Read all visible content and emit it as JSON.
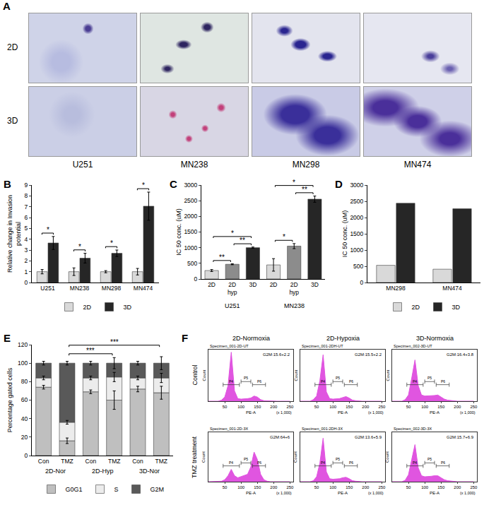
{
  "image_panel": {
    "label": "A",
    "rows": [
      "2D",
      "3D"
    ],
    "columns": [
      "U251",
      "MN238",
      "MN298",
      "MN474"
    ]
  },
  "chart_data": [
    {
      "panel": "B",
      "type": "bar",
      "categories": [
        "U251",
        "MN238",
        "MN298",
        "MN474"
      ],
      "series": [
        {
          "name": "2D",
          "color": "#d9d9d9",
          "values": [
            1,
            1,
            1,
            1
          ],
          "errors": [
            0.2,
            0.35,
            0.1,
            0.3
          ]
        },
        {
          "name": "3D",
          "color": "#262626",
          "values": [
            3.65,
            2.25,
            2.7,
            7.05
          ],
          "errors": [
            0.6,
            0.45,
            0.3,
            1.3
          ]
        }
      ],
      "y_label": "Relative change in Invasion\npotential",
      "ylim": [
        0,
        9
      ],
      "yticks": [
        0,
        1,
        2,
        3,
        4,
        5,
        6,
        7,
        8,
        9
      ],
      "legend": "bottom",
      "significance": [
        {
          "category": "U251",
          "text": "*"
        },
        {
          "category": "MN238",
          "text": "*"
        },
        {
          "category": "MN298",
          "text": "*"
        },
        {
          "category": "MN474",
          "text": "*"
        }
      ]
    },
    {
      "panel": "C",
      "type": "bar",
      "categories": [
        "2D",
        "2D\nhyp",
        "3D",
        "2D",
        "2D\nhyp",
        "3D"
      ],
      "groups": [
        {
          "label": "U251",
          "from": 0,
          "to": 2
        },
        {
          "label": "MN238",
          "from": 3,
          "to": 5
        }
      ],
      "values": [
        270,
        470,
        1000,
        450,
        1050,
        2550
      ],
      "errors": [
        30,
        15,
        20,
        200,
        80,
        100
      ],
      "colors": [
        "#d9d9d9",
        "#8c8c8c",
        "#262626",
        "#d9d9d9",
        "#8c8c8c",
        "#262626"
      ],
      "y_label": "IC 50 conc. (uM)",
      "ylim": [
        0,
        3000
      ],
      "yticks": [
        0,
        500,
        1000,
        1500,
        2000,
        2500,
        3000
      ],
      "significance": [
        {
          "from": 0,
          "to": 1,
          "text": "**"
        },
        {
          "from": 1,
          "to": 2,
          "text": "**"
        },
        {
          "from": 0,
          "to": 2,
          "text": "*"
        },
        {
          "from": 3,
          "to": 4,
          "text": "*"
        },
        {
          "from": 4,
          "to": 5,
          "text": "**"
        },
        {
          "from": 3,
          "to": 5,
          "text": "*"
        }
      ]
    },
    {
      "panel": "D",
      "type": "bar",
      "categories": [
        "MN298",
        "MN474"
      ],
      "series": [
        {
          "name": "2D",
          "color": "#d9d9d9",
          "values": [
            530,
            410
          ]
        },
        {
          "name": "3D",
          "color": "#262626",
          "values": [
            2440,
            2270
          ]
        }
      ],
      "y_label": "IC 50 conc. (uM)",
      "ylim": [
        0,
        3000
      ],
      "yticks": [
        0,
        500,
        1000,
        1500,
        2000,
        2500,
        3000
      ],
      "legend": "bottom"
    },
    {
      "panel": "E",
      "type": "bar",
      "stacked": true,
      "categories": [
        "Con",
        "TMZ",
        "Con",
        "TMZ",
        "Con",
        "TMZ"
      ],
      "groups": [
        {
          "label": "2D-Nor",
          "from": 0,
          "to": 1
        },
        {
          "label": "2D-Hyp",
          "from": 2,
          "to": 3
        },
        {
          "label": "3D-Nor",
          "from": 4,
          "to": 5
        }
      ],
      "series": [
        {
          "name": "G0G1",
          "color": "#bfbfbf",
          "values": [
            74,
            16,
            69,
            60,
            72,
            68
          ],
          "errors": [
            2,
            3,
            2,
            10,
            3,
            7
          ]
        },
        {
          "name": "S",
          "color": "#ececec",
          "values": [
            10,
            20,
            15,
            25,
            12,
            16
          ],
          "errors": [
            2,
            2,
            2,
            5,
            2,
            5
          ]
        },
        {
          "name": "G2M",
          "color": "#595959",
          "values": [
            16,
            64,
            16,
            15,
            16,
            16
          ],
          "errors": [
            2,
            2,
            2,
            6,
            2,
            7
          ]
        }
      ],
      "y_label": "Percentage gated cells",
      "ylim": [
        0,
        120
      ],
      "yticks": [
        0,
        20,
        40,
        60,
        80,
        100,
        120
      ],
      "legend": "bottom",
      "significance": [
        {
          "from": 1,
          "to": 3,
          "text": "***"
        },
        {
          "from": 1,
          "to": 5,
          "text": "***"
        }
      ]
    },
    {
      "panel": "F",
      "type": "area",
      "rows": [
        "Control",
        "TMZ treatment"
      ],
      "columns": [
        "2D-Normoxia",
        "2D-Hypoxia",
        "3D-Normoxia"
      ],
      "x": [
        0,
        10,
        20,
        30,
        40,
        50,
        60,
        70,
        80,
        90,
        100,
        110,
        120,
        130,
        140,
        150,
        160,
        170,
        180,
        190,
        200,
        210,
        220,
        230,
        240,
        250
      ],
      "x_label": "PE-A",
      "x_unit": "(x 1,000)",
      "y_label": "Count",
      "xlim": [
        0,
        260
      ],
      "xticks": [
        50,
        100,
        150,
        200,
        250
      ],
      "ylim": [
        0,
        100
      ],
      "tick_labels": "x",
      "color": "#e055e0",
      "gates": [
        {
          "label": "P4",
          "from": 45,
          "to": 95
        },
        {
          "label": "P5",
          "from": 100,
          "to": 130
        },
        {
          "label": "P6",
          "from": 135,
          "to": 175
        }
      ],
      "plots": [
        {
          "title": "Specimen_001-2D-UT",
          "note": "G2M:15.6+2.2",
          "values": [
            0,
            0,
            0,
            0,
            2,
            8,
            30,
            95,
            20,
            5,
            4,
            4,
            5,
            6,
            10,
            8,
            3,
            1,
            0.5,
            0,
            0,
            0,
            0,
            0,
            0,
            0
          ]
        },
        {
          "title": "Specimen_001-2DH-UT",
          "note": "G2M:15.5+2.2",
          "values": [
            0,
            0,
            0,
            0,
            3,
            10,
            40,
            90,
            18,
            5,
            4,
            4,
            5,
            7,
            9,
            6,
            2,
            1,
            0,
            0,
            0,
            0,
            0,
            0,
            0,
            0
          ]
        },
        {
          "title": "Specimen_002-3D-UT",
          "note": "G2M:16.4+3.8",
          "values": [
            0,
            0,
            0,
            0,
            3,
            12,
            45,
            80,
            30,
            12,
            10,
            10,
            10,
            11,
            12,
            8,
            4,
            2,
            1,
            0,
            0,
            0,
            0,
            0,
            0,
            0
          ]
        },
        {
          "title": "Specimen_001-2D-3X",
          "note": "G2M:64+6",
          "values": [
            0,
            0,
            0,
            0,
            1,
            4,
            12,
            25,
            12,
            8,
            10,
            12,
            15,
            30,
            60,
            45,
            15,
            4,
            1,
            0,
            0,
            0,
            0,
            0,
            0,
            0
          ]
        },
        {
          "title": "Specimen_001-2DH-3X",
          "note": "G2M:13.6+5.9",
          "values": [
            0,
            0,
            0,
            0,
            2,
            10,
            38,
            88,
            20,
            6,
            5,
            5,
            6,
            8,
            9,
            6,
            2,
            1,
            0,
            0,
            0,
            0,
            0,
            0,
            0,
            0
          ]
        },
        {
          "title": "Specimen_002-3D-3X",
          "note": "G2M:15.7+6.9",
          "values": [
            0,
            0,
            0,
            0,
            3,
            14,
            45,
            75,
            28,
            12,
            10,
            10,
            11,
            12,
            12,
            8,
            4,
            2,
            1,
            0,
            0,
            0,
            0,
            0,
            0,
            0
          ]
        }
      ]
    }
  ]
}
